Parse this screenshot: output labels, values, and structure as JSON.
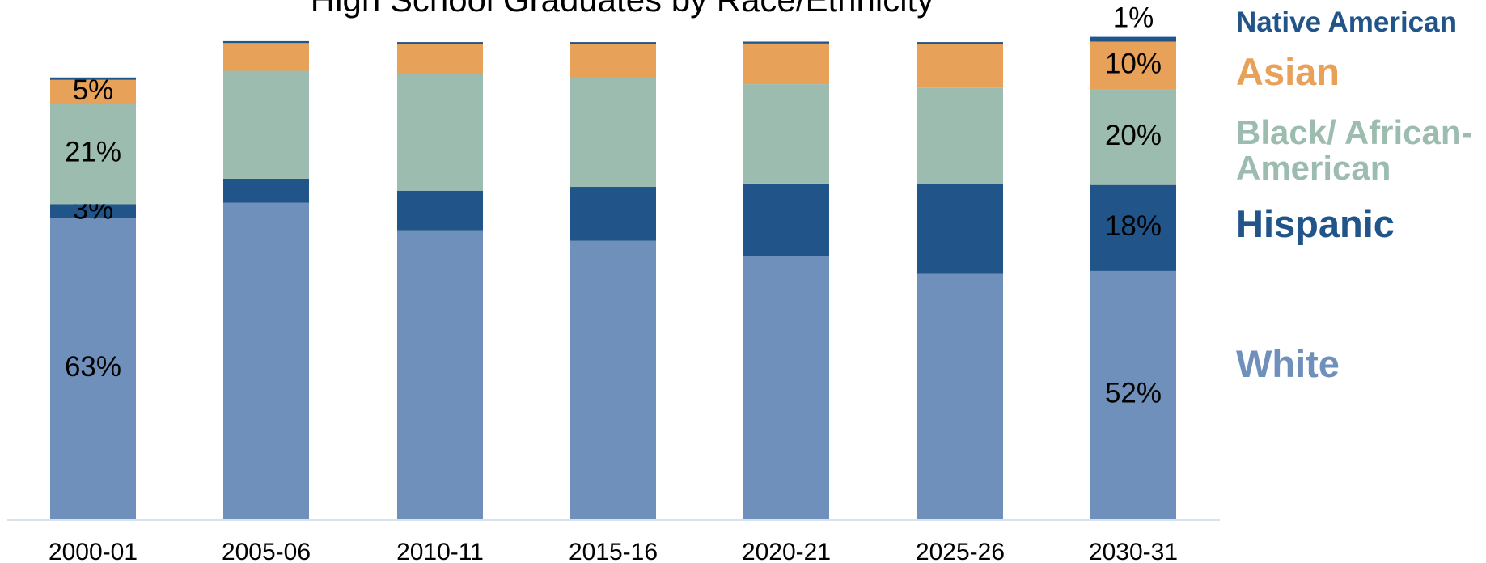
{
  "chart_data": {
    "type": "stacked_bar",
    "title": "High School Graduates by Race/Ethnicity",
    "categories": [
      "2000-01",
      "2005-06",
      "2010-11",
      "2015-16",
      "2020-21",
      "2025-26",
      "2030-31"
    ],
    "ylim": [
      0,
      100
    ],
    "series": [
      {
        "name": "White",
        "color": "#6f90bb",
        "values": [
          63,
          66.3,
          60.5,
          58.3,
          55.2,
          51.4,
          52
        ],
        "value_labels": [
          "63%",
          null,
          null,
          null,
          null,
          null,
          "52%"
        ]
      },
      {
        "name": "Hispanic",
        "color": "#21558a",
        "values": [
          3,
          5,
          8.3,
          11.3,
          15.1,
          18.8,
          18
        ],
        "value_labels": [
          "3%",
          null,
          null,
          null,
          null,
          null,
          "18%"
        ]
      },
      {
        "name": "Black/ African-American",
        "color": "#9dbcb0",
        "values": [
          21,
          22.6,
          24.4,
          22.8,
          20.8,
          20.2,
          20
        ],
        "value_labels": [
          "21%",
          null,
          null,
          null,
          null,
          null,
          "20%"
        ]
      },
      {
        "name": "Asian",
        "color": "#e8a159",
        "values": [
          5,
          5.8,
          6.3,
          7.1,
          8.5,
          9.1,
          10
        ],
        "value_labels": [
          "5%",
          null,
          null,
          null,
          null,
          null,
          "10%"
        ]
      },
      {
        "name": "Native American",
        "color": "#21558a",
        "values": [
          0.5,
          0.4,
          0.4,
          0.4,
          0.4,
          0.4,
          1
        ],
        "value_labels": [
          null,
          null,
          null,
          null,
          null,
          null,
          "1%"
        ]
      }
    ]
  }
}
